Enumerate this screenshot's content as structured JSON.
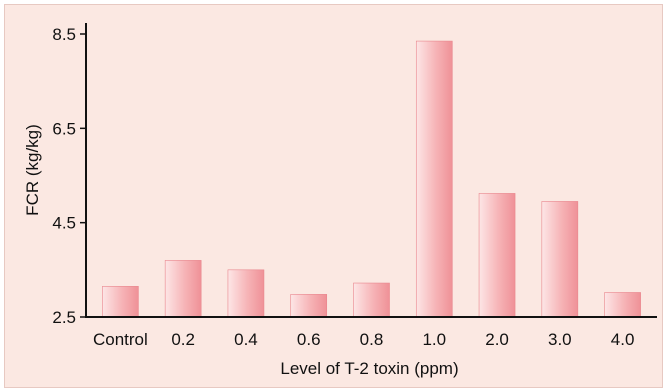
{
  "chart_data": {
    "type": "bar",
    "title": "",
    "xlabel": "Level of T-2 toxin (ppm)",
    "ylabel": "FCR (kg/kg)",
    "ylim": [
      2.5,
      8.5
    ],
    "yticks": [
      "2.5",
      "4.5",
      "6.5",
      "8.5"
    ],
    "categories": [
      "Control",
      "0.2",
      "0.4",
      "0.6",
      "0.8",
      "1.0",
      "2.0",
      "3.0",
      "4.0"
    ],
    "values": [
      3.15,
      3.7,
      3.5,
      2.98,
      3.22,
      8.35,
      5.12,
      4.95,
      3.02
    ],
    "grid": false,
    "bar_color": "#f19aa0"
  }
}
